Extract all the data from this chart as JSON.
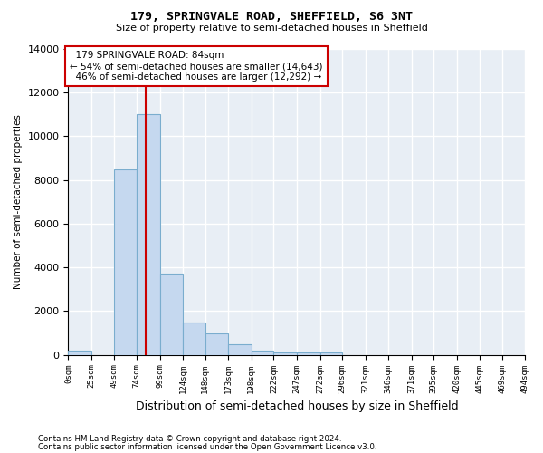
{
  "title1": "179, SPRINGVALE ROAD, SHEFFIELD, S6 3NT",
  "title2": "Size of property relative to semi-detached houses in Sheffield",
  "xlabel": "Distribution of semi-detached houses by size in Sheffield",
  "ylabel": "Number of semi-detached properties",
  "footnote1": "Contains HM Land Registry data © Crown copyright and database right 2024.",
  "footnote2": "Contains public sector information licensed under the Open Government Licence v3.0.",
  "bar_edges": [
    0,
    25,
    49,
    74,
    99,
    124,
    148,
    173,
    198,
    222,
    247,
    272,
    296,
    321,
    346,
    371,
    395,
    420,
    445,
    469,
    494
  ],
  "bar_heights": [
    200,
    0,
    8500,
    11000,
    3700,
    1500,
    1000,
    500,
    200,
    100,
    100,
    100,
    0,
    0,
    0,
    0,
    0,
    0,
    0,
    0
  ],
  "bar_color": "#c5d8ef",
  "bar_edgecolor": "#7aadce",
  "property_size": 84,
  "property_label": "179 SPRINGVALE ROAD: 84sqm",
  "pct_smaller": 54,
  "count_smaller": "14,643",
  "pct_larger": 46,
  "count_larger": "12,292",
  "vline_color": "#cc0000",
  "annotation_edgecolor": "#cc0000",
  "ylim": [
    0,
    14000
  ],
  "xlim": [
    0,
    494
  ],
  "bg_color": "#e8eef5",
  "grid_color": "#ffffff",
  "tick_labels": [
    "0sqm",
    "25sqm",
    "49sqm",
    "74sqm",
    "99sqm",
    "124sqm",
    "148sqm",
    "173sqm",
    "198sqm",
    "222sqm",
    "247sqm",
    "272sqm",
    "296sqm",
    "321sqm",
    "346sqm",
    "371sqm",
    "395sqm",
    "420sqm",
    "445sqm",
    "469sqm",
    "494sqm"
  ],
  "figsize": [
    6.0,
    5.0
  ],
  "dpi": 100
}
